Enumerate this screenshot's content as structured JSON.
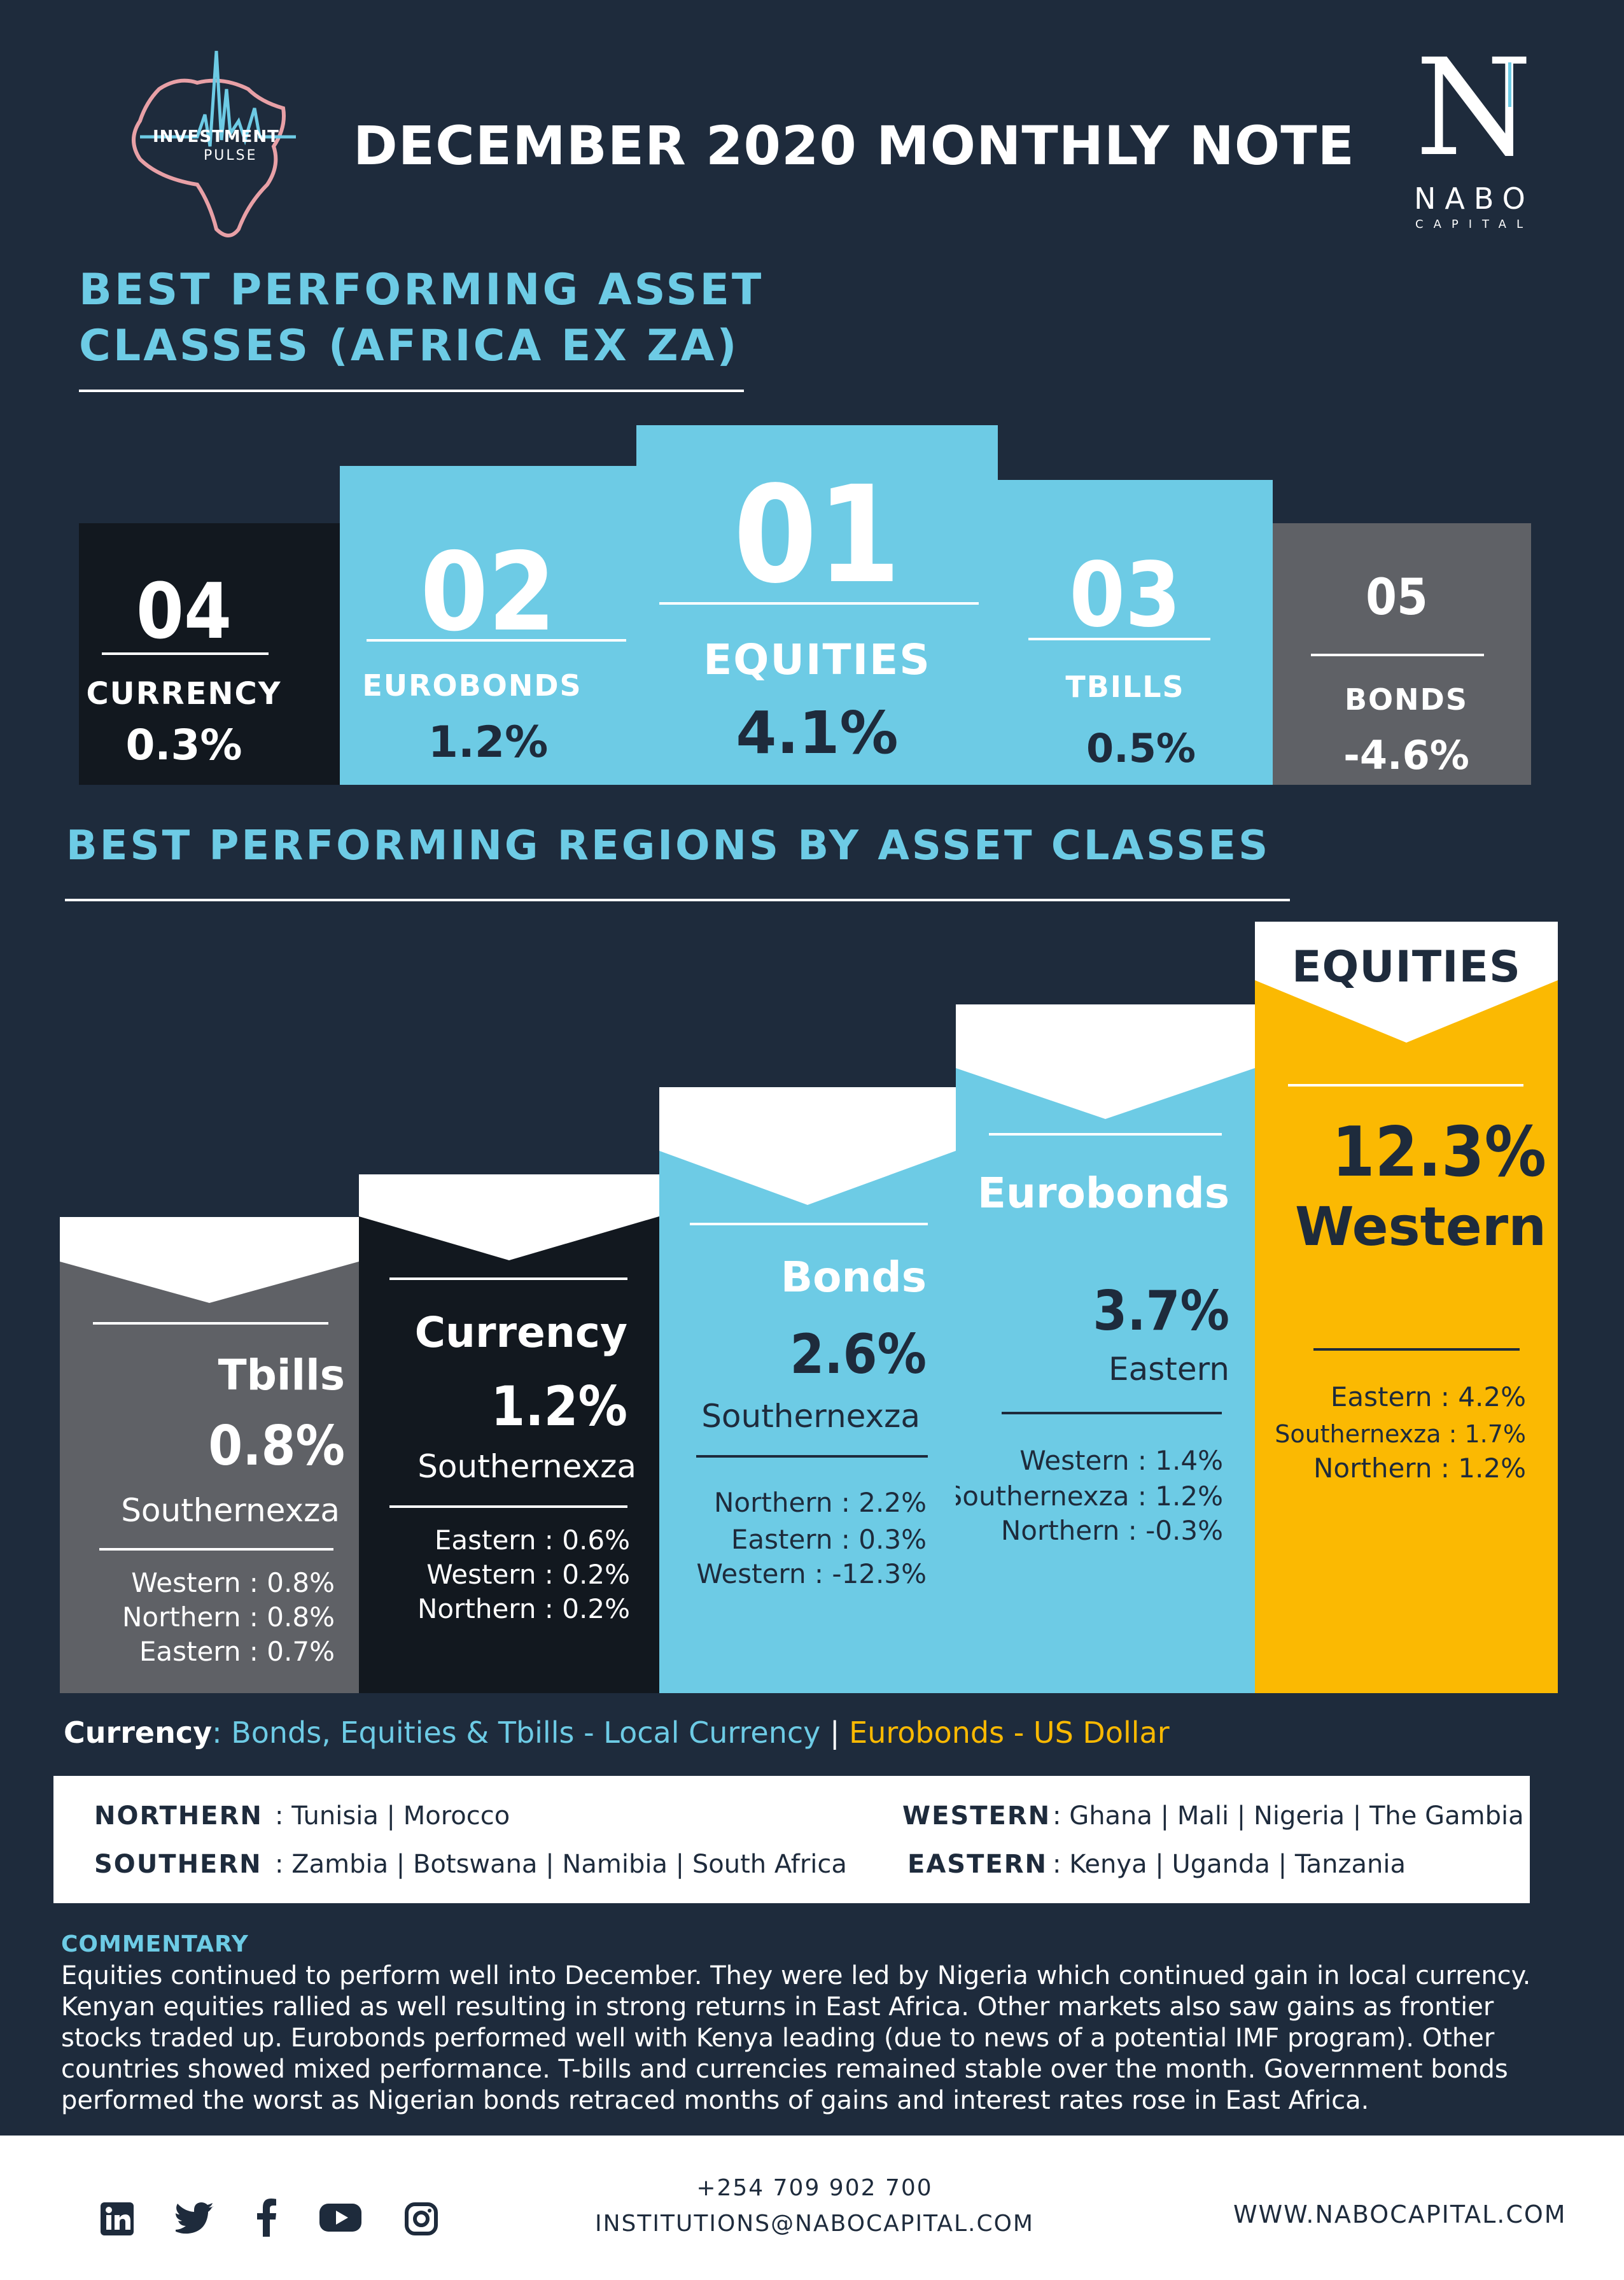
{
  "header": {
    "title": "DECEMBER 2020 MONTHLY NOTE",
    "logo_left": {
      "line1": "INVESTMENT",
      "line2": "PULSE"
    },
    "logo_right": {
      "mark": "N",
      "name": "NABO",
      "sub": "CAPITAL"
    }
  },
  "asset_classes": {
    "heading_line1": "BEST PERFORMING ASSET",
    "heading_line2": "CLASSES (AFRICA EX ZA)",
    "items": [
      {
        "rank": "04",
        "label": "CURRENCY",
        "value": "0.3%",
        "color": "#12181f"
      },
      {
        "rank": "02",
        "label": "EUROBONDS",
        "value": "1.2%",
        "color": "#6dcbe5"
      },
      {
        "rank": "01",
        "label": "EQUITIES",
        "value": "4.1%",
        "color": "#6dcbe5"
      },
      {
        "rank": "03",
        "label": "TBILLS",
        "value": "0.5%",
        "color": "#6dcbe5"
      },
      {
        "rank": "05",
        "label": "BONDS",
        "value": "-4.6%",
        "color": "#5f6166"
      }
    ]
  },
  "regions": {
    "heading": "BEST PERFORMING REGIONS BY ASSET CLASSES",
    "bars": [
      {
        "name": "Tbills",
        "pct": "0.8%",
        "region": "Southernexza",
        "others": [
          "Western : 0.8%",
          "Northern : 0.8%",
          "Eastern : 0.7%"
        ],
        "color": "#5f6166"
      },
      {
        "name": "Currency",
        "pct": "1.2%",
        "region": "Southernexza",
        "others": [
          "Eastern : 0.6%",
          "Western : 0.2%",
          "Northern : 0.2%"
        ],
        "color": "#12181f"
      },
      {
        "name": "Bonds",
        "pct": "2.6%",
        "region": "Southernexza",
        "others": [
          "Northern : 2.2%",
          "Eastern : 0.3%",
          "Western : -12.3%"
        ],
        "color": "#6dcbe5"
      },
      {
        "name": "Eurobonds",
        "pct": "3.7%",
        "region": "Eastern",
        "others": [
          "Western :  1.4%",
          "Southernexza : 1.2%",
          "Northern :  -0.3%"
        ],
        "color": "#6dcbe5"
      },
      {
        "name": "EQUITIES",
        "pct": "12.3%",
        "region": "Western",
        "others": [
          "Eastern : 4.2%",
          "Southernexza   : 1.7%",
          "Northern : 1.2%"
        ],
        "color": "#fbb902"
      }
    ]
  },
  "legend": {
    "currency_label": "Currency",
    "local_text": ": Bonds, Equities & Tbills - Local Currency",
    "separator": "|",
    "usd_text": "Eurobonds - US Dollar"
  },
  "region_key": [
    {
      "name": "NORTHERN",
      "countries": ": Tunisia | Morocco"
    },
    {
      "name": "SOUTHERN",
      "countries": ": Zambia | Botswana | Namibia | South Africa"
    },
    {
      "name": "WESTERN",
      "countries": ": Ghana | Mali | Nigeria | The Gambia"
    },
    {
      "name": "EASTERN",
      "countries": ": Kenya | Uganda | Tanzania"
    }
  ],
  "commentary": {
    "heading": "COMMENTARY",
    "lines": [
      "Equities continued to perform well into December. They were led by Nigeria which continued gain in local currency.",
      "Kenyan equities rallied as well resulting in strong returns in East Africa. Other markets also saw gains as frontier",
      "stocks traded up. Eurobonds performed well with Kenya leading (due to news of a potential IMF program). Other",
      "countries showed mixed performance. T-bills and currencies remained stable over the month. Government bonds",
      "performed the worst as Nigerian bonds retraced months of gains and interest rates rose in East Africa."
    ]
  },
  "footer": {
    "phone": "+254 709 902 700",
    "email": "INSTITUTIONS@NABOCAPITAL.COM",
    "website": "WWW.NABOCAPITAL.COM",
    "social_icons": [
      "linkedin-icon",
      "twitter-icon",
      "facebook-icon",
      "youtube-icon",
      "instagram-icon"
    ]
  }
}
